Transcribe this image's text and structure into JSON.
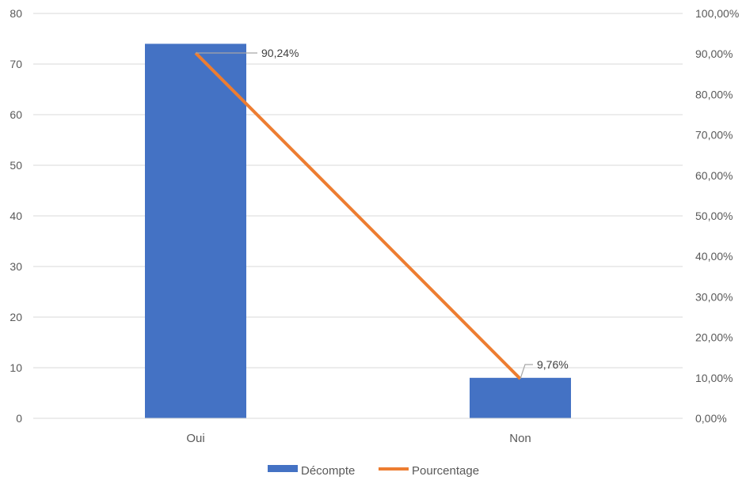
{
  "chart_data": {
    "type": "bar",
    "categories": [
      "Oui",
      "Non"
    ],
    "series": [
      {
        "name": "Décompte",
        "type": "bar",
        "axis": "left",
        "values": [
          74,
          8
        ]
      },
      {
        "name": "Pourcentage",
        "type": "line",
        "axis": "right",
        "values": [
          90.24,
          9.76
        ]
      }
    ],
    "data_labels": [
      "90,24%",
      "9,76%"
    ],
    "y_left": {
      "ylim": [
        0,
        80
      ],
      "ticks": [
        "0",
        "10",
        "20",
        "30",
        "40",
        "50",
        "60",
        "70",
        "80"
      ]
    },
    "y_right": {
      "ylim": [
        0,
        100
      ],
      "ticks": [
        "0,00%",
        "10,00%",
        "20,00%",
        "30,00%",
        "40,00%",
        "50,00%",
        "60,00%",
        "70,00%",
        "80,00%",
        "90,00%",
        "100,00%"
      ]
    },
    "grid": true,
    "legend_position": "bottom",
    "colors": {
      "bar": "#4472C4",
      "line": "#ED7D31",
      "grid": "#D9D9D9",
      "leader": "#A6A6A6"
    }
  }
}
